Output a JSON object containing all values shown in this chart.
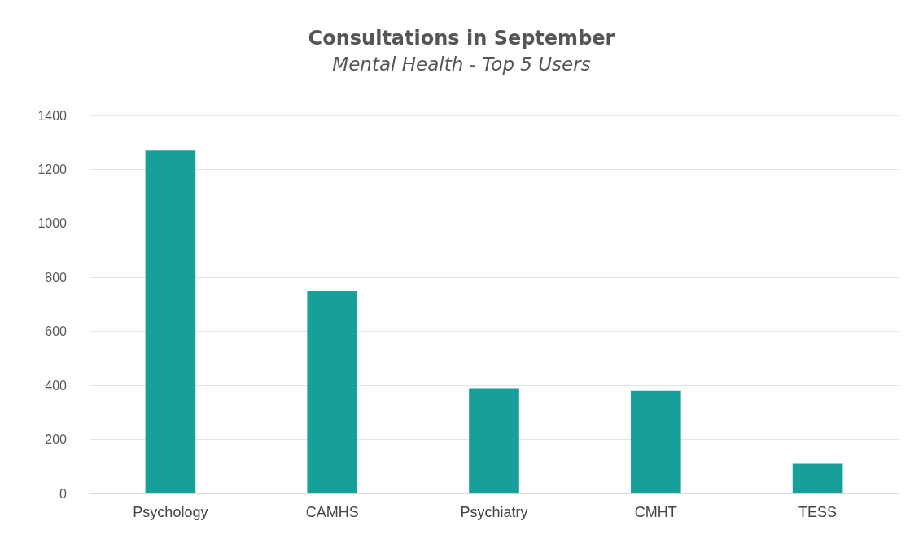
{
  "chart_data": {
    "type": "bar",
    "title": "Consultations in September",
    "subtitle": "Mental Health - Top 5 Users",
    "categories": [
      "Psychology",
      "CAMHS",
      "Psychiatry",
      "CMHT",
      "TESS"
    ],
    "values": [
      1270,
      750,
      390,
      380,
      110
    ],
    "color": "#17a09a",
    "ylim": [
      0,
      1400
    ],
    "yticks": [
      0,
      200,
      400,
      600,
      800,
      1000,
      1200,
      1400
    ],
    "grid": "y"
  }
}
